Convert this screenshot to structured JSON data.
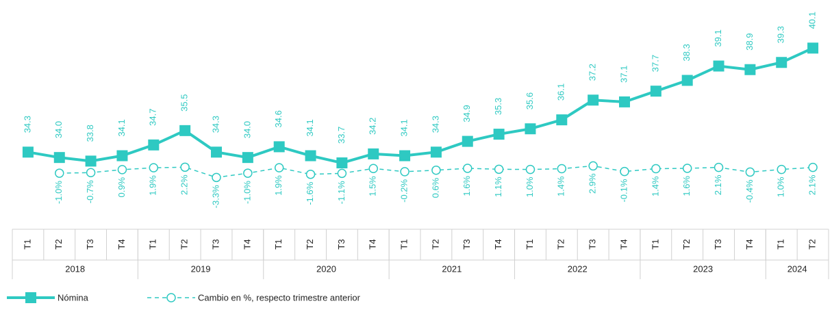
{
  "chart_data": {
    "type": "line",
    "categories": [
      "T1",
      "T2",
      "T3",
      "T4",
      "T1",
      "T2",
      "T3",
      "T4",
      "T1",
      "T2",
      "T3",
      "T4",
      "T1",
      "T2",
      "T3",
      "T4",
      "T1",
      "T2",
      "T3",
      "T4",
      "T1",
      "T2",
      "T3",
      "T4",
      "T1",
      "T2"
    ],
    "groups": [
      {
        "name": "2018",
        "size": 4
      },
      {
        "name": "2019",
        "size": 4
      },
      {
        "name": "2020",
        "size": 4
      },
      {
        "name": "2021",
        "size": 4
      },
      {
        "name": "2022",
        "size": 4
      },
      {
        "name": "2023",
        "size": 4
      },
      {
        "name": "2024",
        "size": 2
      }
    ],
    "ylim": [
      30,
      42.4
    ],
    "y2lim": [
      -31,
      88
    ],
    "series": [
      {
        "name": "Nómina",
        "color": "#2ec9c2",
        "marker": "square",
        "dash": false,
        "values": [
          34.3,
          34.0,
          33.8,
          34.1,
          34.7,
          35.5,
          34.3,
          34.0,
          34.6,
          34.1,
          33.7,
          34.2,
          34.1,
          34.3,
          34.9,
          35.3,
          35.6,
          36.1,
          37.2,
          37.1,
          37.7,
          38.3,
          39.1,
          38.9,
          39.3,
          40.1
        ],
        "value_labels": [
          "34.3",
          "34.0",
          "33.8",
          "34.1",
          "34.7",
          "35.5",
          "34.3",
          "34.0",
          "34.6",
          "34.1",
          "33.7",
          "34.2",
          "34.1",
          "34.3",
          "34.9",
          "35.3",
          "35.6",
          "36.1",
          "37.2",
          "37.1",
          "37.7",
          "38.3",
          "39.1",
          "38.9",
          "39.3",
          "40.1"
        ]
      },
      {
        "name": "Cambio en %, respecto trimestre anterior",
        "color": "#2ec9c2",
        "marker": "circle",
        "dash": true,
        "axis": "y2",
        "values": [
          null,
          -1.0,
          -0.7,
          0.9,
          1.9,
          2.2,
          -3.3,
          -1.0,
          1.9,
          -1.6,
          -1.1,
          1.5,
          -0.2,
          0.6,
          1.6,
          1.1,
          1.0,
          1.4,
          2.9,
          -0.1,
          1.4,
          1.6,
          2.1,
          -0.4,
          1.0,
          2.1
        ],
        "value_labels": [
          null,
          "-1.0%",
          "-0.7%",
          "0.9%",
          "1.9%",
          "2.2%",
          "-3.3%",
          "-1.0%",
          "1.9%",
          "-1.6%",
          "-1.1%",
          "1.5%",
          "-0.2%",
          "0.6%",
          "1.6%",
          "1.1%",
          "1.0%",
          "1.4%",
          "2.9%",
          "-0.1%",
          "1.4%",
          "1.6%",
          "2.1%",
          "-0.4%",
          "1.0%",
          "2.1%"
        ]
      }
    ]
  }
}
